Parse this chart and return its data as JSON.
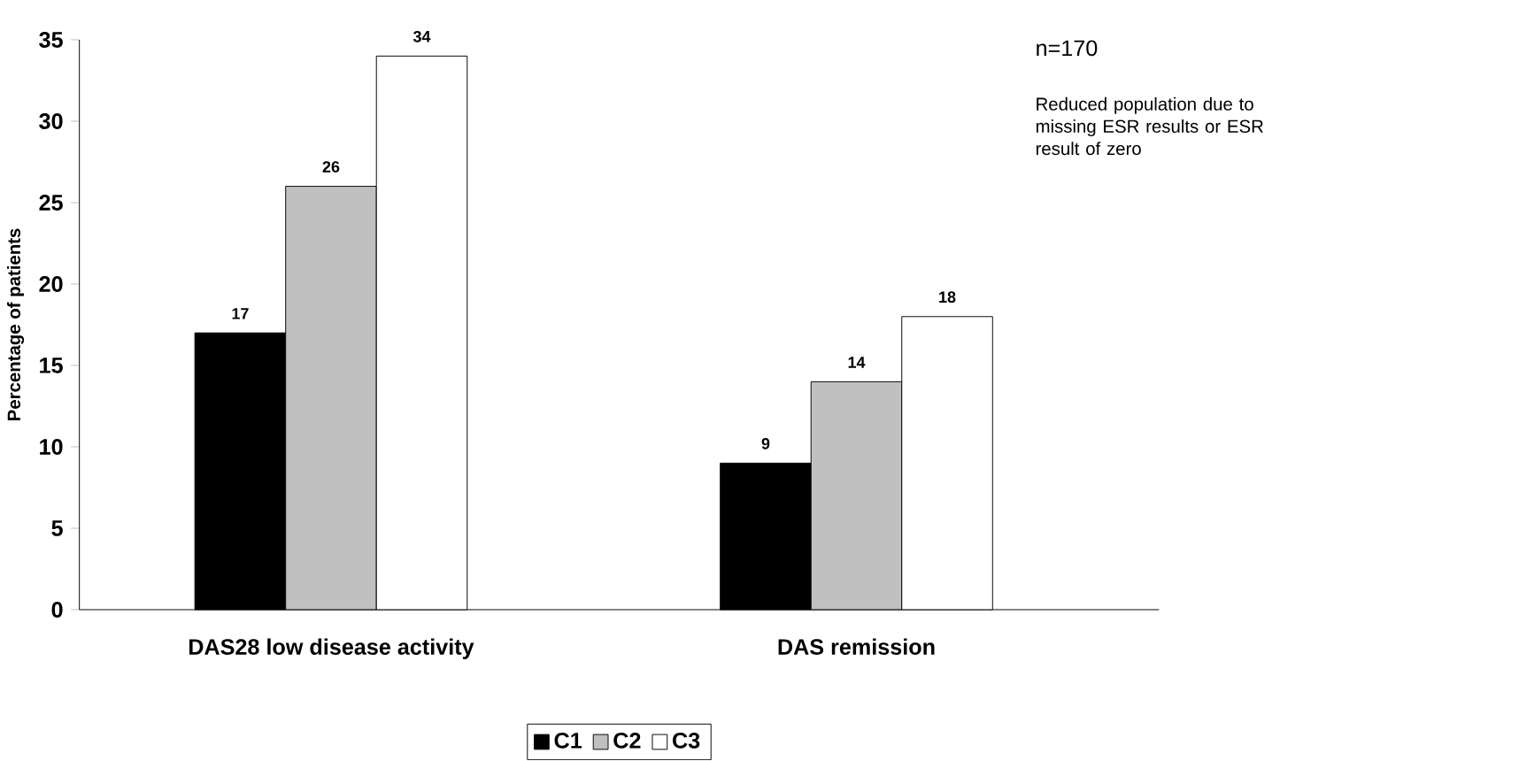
{
  "chart_data": {
    "type": "bar",
    "ylabel": "Percentage of patients",
    "categories": [
      "DAS28 low disease activity",
      "DAS remission"
    ],
    "series": [
      {
        "name": "C1",
        "color": "#000000",
        "values": [
          17,
          9
        ]
      },
      {
        "name": "C2",
        "color": "#c0c0c0",
        "values": [
          26,
          14
        ]
      },
      {
        "name": "C3",
        "color": "#ffffff",
        "values": [
          34,
          18
        ]
      }
    ],
    "ylim": [
      0,
      35
    ],
    "yticks": [
      0,
      5,
      10,
      15,
      20,
      25,
      30,
      35
    ],
    "data_labels": true,
    "legend": "bottom",
    "annotations": [
      "n=170",
      "Reduced population due to missing ESR results or ESR result of zero"
    ]
  }
}
